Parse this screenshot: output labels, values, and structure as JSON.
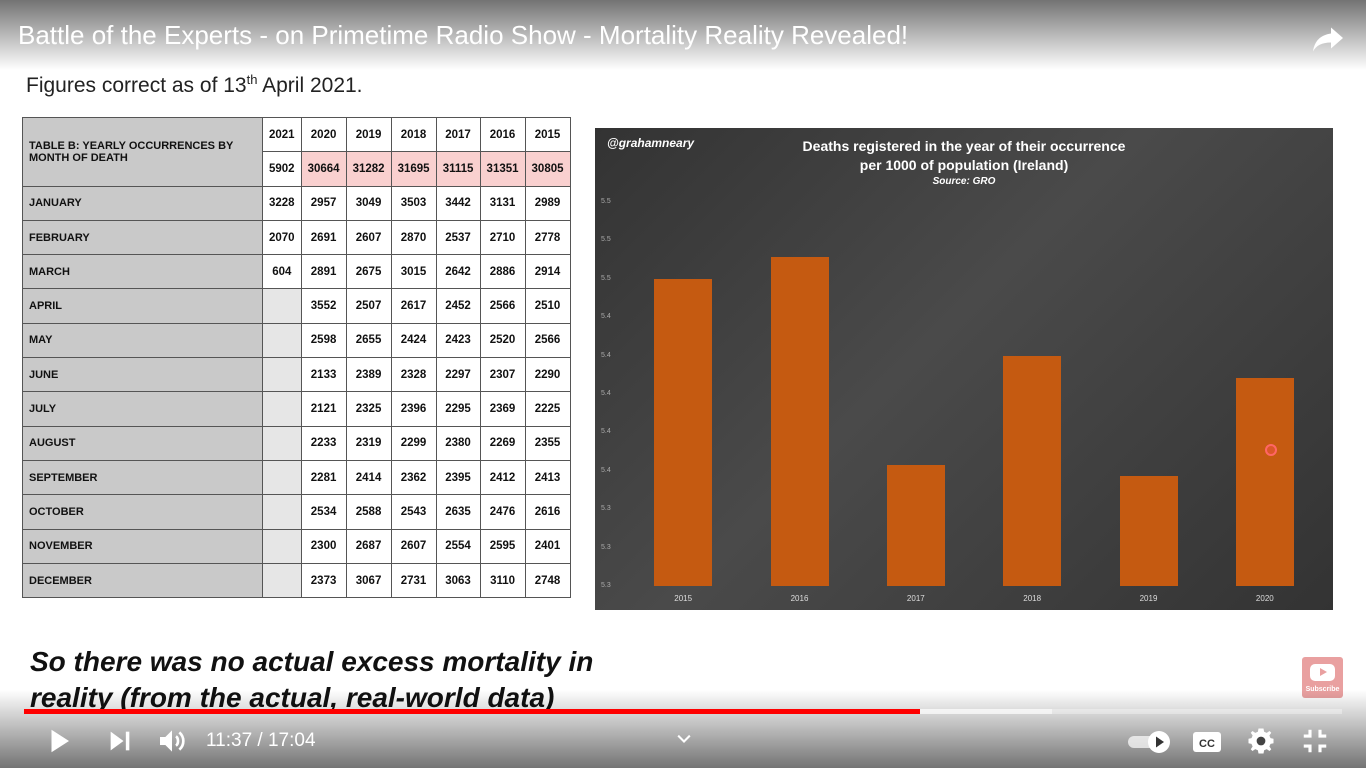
{
  "video": {
    "title": "Battle of the Experts - on Primetime Radio Show - Mortality Reality Revealed!",
    "time_current": "11:37",
    "time_separator": " / ",
    "time_total": "17:04",
    "progress_played": 0.68,
    "progress_buffered": 0.78,
    "accent_color": "#ff0000"
  },
  "slide": {
    "figures_note_prefix": "Figures correct as of 13",
    "figures_note_sup": "th",
    "figures_note_suffix": " April 2021.",
    "caption_line1": "So there was no actual excess mortality in",
    "caption_line2": "reality (from the actual, real-world data)"
  },
  "table": {
    "label": "TABLE B: YEARLY OCCURRENCES BY MONTH OF DEATH",
    "years": [
      "2021",
      "2020",
      "2019",
      "2018",
      "2017",
      "2016",
      "2015"
    ],
    "totals": [
      "5902",
      "30664",
      "31282",
      "31695",
      "31115",
      "31351",
      "30805"
    ],
    "rows": [
      {
        "month": "JANUARY",
        "values": [
          "3228",
          "2957",
          "3049",
          "3503",
          "3442",
          "3131",
          "2989"
        ]
      },
      {
        "month": "FEBRUARY",
        "values": [
          "2070",
          "2691",
          "2607",
          "2870",
          "2537",
          "2710",
          "2778"
        ]
      },
      {
        "month": "MARCH",
        "values": [
          "604",
          "2891",
          "2675",
          "3015",
          "2642",
          "2886",
          "2914"
        ]
      },
      {
        "month": "APRIL",
        "values": [
          "",
          "3552",
          "2507",
          "2617",
          "2452",
          "2566",
          "2510"
        ]
      },
      {
        "month": "MAY",
        "values": [
          "",
          "2598",
          "2655",
          "2424",
          "2423",
          "2520",
          "2566"
        ]
      },
      {
        "month": "JUNE",
        "values": [
          "",
          "2133",
          "2389",
          "2328",
          "2297",
          "2307",
          "2290"
        ]
      },
      {
        "month": "JULY",
        "values": [
          "",
          "2121",
          "2325",
          "2396",
          "2295",
          "2369",
          "2225"
        ]
      },
      {
        "month": "AUGUST",
        "values": [
          "",
          "2233",
          "2319",
          "2299",
          "2380",
          "2269",
          "2355"
        ]
      },
      {
        "month": "SEPTEMBER",
        "values": [
          "",
          "2281",
          "2414",
          "2362",
          "2395",
          "2412",
          "2413"
        ]
      },
      {
        "month": "OCTOBER",
        "values": [
          "",
          "2534",
          "2588",
          "2543",
          "2635",
          "2476",
          "2616"
        ]
      },
      {
        "month": "NOVEMBER",
        "values": [
          "",
          "2300",
          "2687",
          "2607",
          "2554",
          "2595",
          "2401"
        ]
      },
      {
        "month": "DECEMBER",
        "values": [
          "",
          "2373",
          "3067",
          "2731",
          "3063",
          "3110",
          "2748"
        ]
      }
    ]
  },
  "chart_data": {
    "type": "bar",
    "handle": "@grahamneary",
    "title": "Deaths registered in the year of their occurrence",
    "subtitle": "per 1000 of population (Ireland)",
    "source": "Source: GRO",
    "categories": [
      "2015",
      "2016",
      "2017",
      "2018",
      "2019",
      "2020"
    ],
    "values": [
      5.53,
      5.55,
      5.36,
      5.46,
      5.35,
      5.44
    ],
    "ylim": [
      5.25,
      5.6
    ],
    "yticks": [
      "5.5",
      "5.5",
      "5.5",
      "5.4",
      "5.4",
      "5.4",
      "5.4",
      "5.4",
      "5.3",
      "5.3",
      "5.3"
    ],
    "bar_color": "#c55a11",
    "grid": false
  },
  "subscribe": {
    "label": "Subscribe"
  }
}
